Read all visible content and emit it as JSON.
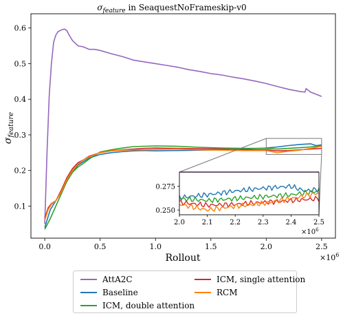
{
  "chart_data": {
    "type": "line",
    "title": "σ_feature in SeaquestNoFrameskip-v0",
    "title_parts": {
      "symbol": "σ",
      "subscript": "feature",
      "rest": " in SeaquestNoFrameskip-v0"
    },
    "xlabel": "Rollout",
    "ylabel": "σ_feature",
    "ylabel_parts": {
      "symbol": "σ",
      "subscript": "feature"
    },
    "x_multiplier": "×10",
    "x_multiplier_exp": "6",
    "xlim": [
      -0.125,
      2.625
    ],
    "ylim": [
      0.01,
      0.64
    ],
    "xticks": [
      0.0,
      0.5,
      1.0,
      1.5,
      2.0,
      2.5
    ],
    "xtick_labels": [
      "0.0",
      "0.5",
      "1.0",
      "1.5",
      "2.0",
      "2.5"
    ],
    "yticks": [
      0.1,
      0.2,
      0.3,
      0.4,
      0.5,
      0.6
    ],
    "ytick_labels": [
      "0.1",
      "0.2",
      "0.3",
      "0.4",
      "0.5",
      "0.6"
    ],
    "grid": false,
    "legend_position": "bottom-outside",
    "series": [
      {
        "name": "AttA2C",
        "color": "#9467bd",
        "x": [
          0,
          0.02,
          0.04,
          0.06,
          0.08,
          0.1,
          0.12,
          0.14,
          0.16,
          0.18,
          0.2,
          0.22,
          0.25,
          0.3,
          0.35,
          0.4,
          0.45,
          0.5,
          0.6,
          0.7,
          0.8,
          0.9,
          1.0,
          1.1,
          1.2,
          1.3,
          1.4,
          1.5,
          1.6,
          1.7,
          1.8,
          1.9,
          2.0,
          2.1,
          2.2,
          2.3,
          2.35,
          2.36,
          2.4,
          2.5
        ],
        "y": [
          0.05,
          0.25,
          0.41,
          0.5,
          0.56,
          0.58,
          0.59,
          0.593,
          0.596,
          0.597,
          0.592,
          0.58,
          0.565,
          0.55,
          0.547,
          0.54,
          0.54,
          0.537,
          0.528,
          0.52,
          0.51,
          0.505,
          0.5,
          0.495,
          0.49,
          0.483,
          0.478,
          0.472,
          0.468,
          0.462,
          0.457,
          0.451,
          0.444,
          0.436,
          0.428,
          0.422,
          0.42,
          0.43,
          0.42,
          0.408
        ]
      },
      {
        "name": "Baseline",
        "color": "#1f77b4",
        "x": [
          0,
          0.05,
          0.1,
          0.15,
          0.2,
          0.25,
          0.3,
          0.35,
          0.4,
          0.5,
          0.6,
          0.7,
          0.8,
          0.9,
          1.0,
          1.2,
          1.4,
          1.6,
          1.8,
          2.0,
          2.1,
          2.2,
          2.3,
          2.4,
          2.45,
          2.5
        ],
        "y": [
          0.04,
          0.09,
          0.115,
          0.14,
          0.17,
          0.195,
          0.215,
          0.225,
          0.235,
          0.245,
          0.25,
          0.253,
          0.255,
          0.256,
          0.255,
          0.256,
          0.257,
          0.258,
          0.26,
          0.263,
          0.266,
          0.27,
          0.273,
          0.275,
          0.27,
          0.272
        ]
      },
      {
        "name": "ICM, double attention",
        "color": "#2ca02c",
        "x": [
          0,
          0.05,
          0.1,
          0.15,
          0.2,
          0.25,
          0.3,
          0.35,
          0.4,
          0.5,
          0.6,
          0.7,
          0.8,
          0.9,
          1.0,
          1.2,
          1.4,
          1.6,
          1.8,
          2.0,
          2.1,
          2.2,
          2.3,
          2.4,
          2.5
        ],
        "y": [
          0.035,
          0.065,
          0.1,
          0.135,
          0.17,
          0.195,
          0.21,
          0.22,
          0.232,
          0.252,
          0.258,
          0.263,
          0.267,
          0.268,
          0.269,
          0.268,
          0.265,
          0.263,
          0.262,
          0.262,
          0.26,
          0.262,
          0.264,
          0.266,
          0.27
        ]
      },
      {
        "name": "ICM, single attention",
        "color": "#d62728",
        "x": [
          0,
          0.03,
          0.06,
          0.1,
          0.15,
          0.2,
          0.25,
          0.3,
          0.35,
          0.4,
          0.5,
          0.6,
          0.7,
          0.8,
          0.9,
          1.0,
          1.2,
          1.4,
          1.6,
          1.8,
          2.0,
          2.1,
          2.2,
          2.3,
          2.4,
          2.5
        ],
        "y": [
          0.065,
          0.095,
          0.107,
          0.115,
          0.145,
          0.18,
          0.205,
          0.222,
          0.23,
          0.24,
          0.25,
          0.255,
          0.258,
          0.26,
          0.262,
          0.263,
          0.262,
          0.261,
          0.26,
          0.258,
          0.258,
          0.255,
          0.256,
          0.258,
          0.26,
          0.262
        ]
      },
      {
        "name": "RCM",
        "color": "#ff7f0e",
        "x": [
          0,
          0.03,
          0.06,
          0.1,
          0.15,
          0.2,
          0.25,
          0.3,
          0.35,
          0.4,
          0.5,
          0.6,
          0.7,
          0.8,
          0.9,
          1.0,
          1.2,
          1.4,
          1.6,
          1.8,
          2.0,
          2.1,
          2.2,
          2.3,
          2.4,
          2.5
        ],
        "y": [
          0.06,
          0.09,
          0.105,
          0.115,
          0.14,
          0.175,
          0.2,
          0.218,
          0.23,
          0.238,
          0.25,
          0.255,
          0.257,
          0.258,
          0.258,
          0.259,
          0.26,
          0.258,
          0.257,
          0.256,
          0.256,
          0.25,
          0.254,
          0.257,
          0.262,
          0.268
        ]
      }
    ],
    "inset": {
      "xlim": [
        2.0,
        2.5
      ],
      "ylim": [
        0.245,
        0.29
      ],
      "xticks": [
        2.0,
        2.1,
        2.2,
        2.3,
        2.4,
        2.5
      ],
      "xtick_labels": [
        "2.0",
        "2.1",
        "2.2",
        "2.3",
        "2.4",
        "2.5"
      ],
      "yticks": [
        0.25,
        0.275
      ],
      "ytick_labels": [
        "0.250",
        "0.275"
      ],
      "x_multiplier": "×10",
      "x_multiplier_exp": "6"
    }
  }
}
